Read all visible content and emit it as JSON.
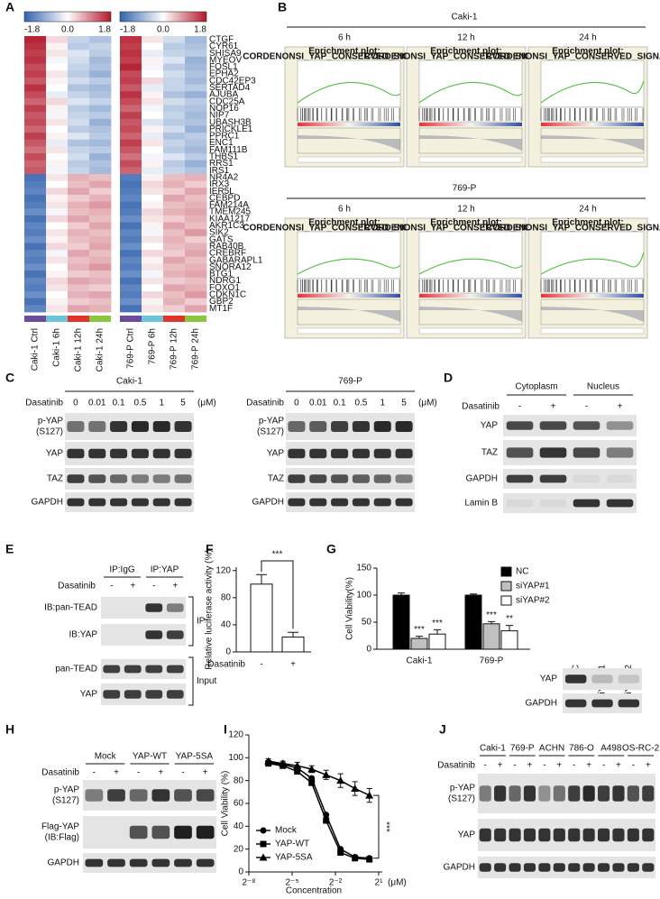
{
  "heatmap": {
    "label": "A",
    "scale_ticks": [
      -1.8,
      {
        "value": 0,
        "label": "0.0"
      },
      1.8
    ],
    "columns": [
      "Caki-1 Ctrl",
      "Caki-1 6h",
      "Caki-1 12h",
      "Caki-1 24h",
      "769-P Ctrl",
      "769-P 6h",
      "769-P 12h",
      "769-P 24h"
    ],
    "group_colors": [
      "#6a4c9c",
      "#6cc5d8",
      "#e0342c",
      "#8cc63f"
    ],
    "genes": [
      "CTGF",
      "CYR61",
      "SHISA9",
      "MYEOV",
      "FOSL1",
      "EPHA2",
      "CDC42EP3",
      "SERTAD4",
      "AJUBA",
      "CDC25A",
      "NOP16",
      "NIP7",
      "UBASH3B",
      "PRICKLE1",
      "PPRC1",
      "ENC1",
      "FAM111B",
      "THBS1",
      "RRS1",
      "IRS1",
      "NR4A2",
      "IRX3",
      "IER5L",
      "CEBPD",
      "FAM214A",
      "TMEM245",
      "KIAA1217",
      "AKR1C3",
      "SIK2",
      "GATS",
      "RAB40B",
      "CREBRF",
      "GABARAPL1",
      "SNORA12",
      "BTG1",
      "NDRG1",
      "FOXO1",
      "CDKN1C",
      "GBP2",
      "MT1F"
    ],
    "values": [
      [
        1.7,
        0.3,
        -0.5,
        -0.7,
        1.6,
        0.2,
        -0.4,
        -0.8
      ],
      [
        1.6,
        0.1,
        -0.6,
        -0.5,
        1.5,
        0.0,
        -0.6,
        -0.7
      ],
      [
        1.5,
        0.2,
        -0.3,
        -0.6,
        1.6,
        -0.2,
        -0.5,
        -0.6
      ],
      [
        1.6,
        -0.1,
        -0.4,
        -0.8,
        1.5,
        0.1,
        -0.3,
        -0.9
      ],
      [
        1.4,
        0.0,
        -0.5,
        -0.7,
        1.7,
        -0.1,
        -0.6,
        -0.8
      ],
      [
        1.5,
        0.2,
        -0.6,
        -0.9,
        1.4,
        0.0,
        -0.4,
        -0.7
      ],
      [
        1.3,
        0.1,
        -0.4,
        -0.6,
        1.5,
        0.3,
        -0.5,
        -0.8
      ],
      [
        1.6,
        0.0,
        -0.7,
        -0.8,
        1.3,
        -0.2,
        -0.5,
        -0.6
      ],
      [
        1.4,
        -0.2,
        -0.5,
        -0.7,
        1.6,
        0.1,
        -0.7,
        -0.9
      ],
      [
        1.2,
        0.3,
        -0.3,
        -0.5,
        1.4,
        0.2,
        -0.4,
        -0.6
      ],
      [
        1.5,
        0.1,
        -0.6,
        -0.8,
        1.2,
        -0.1,
        -0.6,
        -0.7
      ],
      [
        1.3,
        -0.1,
        -0.5,
        -0.6,
        1.5,
        0.0,
        -0.5,
        -0.8
      ],
      [
        1.4,
        0.2,
        -0.4,
        -0.9,
        1.3,
        -0.3,
        -0.6,
        -0.7
      ],
      [
        1.2,
        0.0,
        -0.6,
        -0.7,
        1.4,
        0.1,
        -0.4,
        -0.9
      ],
      [
        1.5,
        0.1,
        -0.3,
        -0.6,
        1.2,
        -0.2,
        -0.7,
        -0.6
      ],
      [
        1.3,
        -0.2,
        -0.7,
        -0.8,
        1.5,
        0.2,
        -0.5,
        -0.7
      ],
      [
        1.1,
        0.2,
        -0.5,
        -0.6,
        1.3,
        0.0,
        -0.6,
        -0.8
      ],
      [
        1.4,
        0.0,
        -0.4,
        -0.9,
        1.1,
        -0.1,
        -0.3,
        -0.6
      ],
      [
        1.2,
        0.1,
        -0.6,
        -0.7,
        1.4,
        0.1,
        -0.6,
        -0.9
      ],
      [
        1.3,
        -0.1,
        -0.5,
        -0.8,
        1.2,
        -0.2,
        -0.5,
        -0.7
      ],
      [
        -1.6,
        0.2,
        0.6,
        0.5,
        -1.5,
        0.1,
        0.5,
        0.6
      ],
      [
        -1.5,
        0.0,
        0.5,
        0.7,
        -1.6,
        0.3,
        0.6,
        0.4
      ],
      [
        -1.4,
        0.3,
        0.7,
        0.4,
        -1.5,
        0.2,
        0.4,
        0.7
      ],
      [
        -1.6,
        0.1,
        0.4,
        0.6,
        -1.4,
        0.0,
        0.7,
        0.5
      ],
      [
        -1.5,
        0.2,
        0.6,
        0.8,
        -1.6,
        0.1,
        0.5,
        0.6
      ],
      [
        -1.3,
        -0.1,
        0.5,
        0.6,
        -1.5,
        0.3,
        0.6,
        0.7
      ],
      [
        -1.6,
        0.3,
        0.7,
        0.5,
        -1.3,
        0.2,
        0.4,
        0.6
      ],
      [
        -1.4,
        0.0,
        0.4,
        0.7,
        -1.6,
        0.1,
        0.7,
        0.5
      ],
      [
        -1.5,
        0.2,
        0.6,
        0.5,
        -1.4,
        -0.1,
        0.5,
        0.8
      ],
      [
        -1.3,
        0.1,
        0.5,
        0.6,
        -1.5,
        0.2,
        0.6,
        0.4
      ],
      [
        -1.6,
        0.3,
        0.4,
        0.7,
        -1.3,
        0.0,
        0.5,
        0.6
      ],
      [
        -1.4,
        -0.1,
        0.7,
        0.5,
        -1.6,
        0.3,
        0.4,
        0.7
      ],
      [
        -1.5,
        0.2,
        0.5,
        0.6,
        -1.4,
        0.1,
        0.7,
        0.5
      ],
      [
        -1.3,
        0.0,
        0.6,
        0.8,
        -1.5,
        0.2,
        0.5,
        0.6
      ],
      [
        -1.6,
        0.1,
        0.4,
        0.5,
        -1.3,
        -0.1,
        0.6,
        0.7
      ],
      [
        -1.4,
        0.3,
        0.7,
        0.6,
        -1.6,
        0.2,
        0.4,
        0.5
      ],
      [
        -1.5,
        0.2,
        0.5,
        0.4,
        -1.4,
        0.0,
        0.7,
        0.6
      ],
      [
        -1.3,
        0.0,
        0.6,
        0.7,
        -1.5,
        0.3,
        0.5,
        0.8
      ],
      [
        -1.6,
        0.1,
        0.4,
        0.5,
        -1.3,
        0.1,
        0.6,
        0.4
      ],
      [
        -1.4,
        0.2,
        0.7,
        0.6,
        -1.6,
        0.2,
        0.4,
        0.7
      ]
    ]
  },
  "gsea": {
    "label": "B",
    "groups": [
      "Caki-1",
      "769-P"
    ],
    "times": [
      "6 h",
      "12 h",
      "24 h"
    ],
    "plot_title": "Enrichment plot:",
    "gene_set": "CORDENONSI_YAP_CONSERVED_SIGNATURE"
  },
  "blot_C": {
    "label": "C",
    "cells": [
      "Caki-1",
      "769-P"
    ],
    "treatment": "Dasatinib",
    "doses": [
      "0",
      "0.01",
      "0.1",
      "0.5",
      "1",
      "5"
    ],
    "unit": "(μM)",
    "rows": [
      [
        "p-YAP",
        "(S127)"
      ],
      [
        "YAP"
      ],
      [
        "TAZ"
      ],
      [
        "GAPDH"
      ]
    ]
  },
  "blot_D": {
    "label": "D",
    "fractions": [
      "Cytoplasm",
      "Nucleus"
    ],
    "treatment": "Dasatinib",
    "signs": [
      "-",
      "+"
    ],
    "rows": [
      [
        "YAP"
      ],
      [
        "TAZ"
      ],
      [
        "GAPDH"
      ],
      [
        "Lamin B"
      ]
    ]
  },
  "blot_E": {
    "label": "E",
    "ips": [
      "IP:IgG",
      "IP:YAP"
    ],
    "treatment": "Dasatinib",
    "signs": [
      "-",
      "+"
    ],
    "rows": [
      [
        "IB:pan-TEAD"
      ],
      [
        "IB:YAP"
      ],
      [
        "pan-TEAD"
      ],
      [
        "YAP"
      ]
    ],
    "brackets": [
      "IP",
      "Input"
    ]
  },
  "blot_G": {
    "lanes": [
      "NC",
      "siYAP#1",
      "siYAP#2"
    ],
    "rows": [
      [
        "YAP"
      ],
      [
        "GAPDH"
      ]
    ]
  },
  "blot_H": {
    "label": "H",
    "groups": [
      "Mock",
      "YAP-WT",
      "YAP-5SA"
    ],
    "treatment": "Dasatinib",
    "signs": [
      "-",
      "+"
    ],
    "rows": [
      [
        "p-YAP",
        "(S127)"
      ],
      [
        "Flag-YAP",
        "(IB:Flag)"
      ],
      [
        "GAPDH"
      ]
    ]
  },
  "blot_J": {
    "label": "J",
    "cells": [
      "Caki-1",
      "769-P",
      "ACHN",
      "786-O",
      "A498",
      "OS-RC-2"
    ],
    "treatment": "Dasatinib",
    "signs": [
      "-",
      "+"
    ],
    "rows": [
      [
        "p-YAP",
        "(S127)"
      ],
      [
        "YAP"
      ],
      [
        "GAPDH"
      ]
    ]
  },
  "chart_data": [
    {
      "type": "bar",
      "label": "F",
      "ylabel": "Relative luciferase activity (%)",
      "xlabel": "Dasatinib",
      "categories": [
        "-",
        "+"
      ],
      "values": [
        100,
        22
      ],
      "errors": [
        14,
        7
      ],
      "color": "#ffffff",
      "ylim": [
        0,
        125
      ],
      "yticks": [
        0,
        40,
        80,
        120
      ],
      "annotation": "***"
    },
    {
      "type": "grouped_bar",
      "label": "G",
      "ylabel": "Cell Viability(%)",
      "categories": [
        "Caki-1",
        "769-P"
      ],
      "series": [
        {
          "name": "NC",
          "color": "#000000",
          "values": [
            100,
            100
          ],
          "errors": [
            4,
            2
          ]
        },
        {
          "name": "siYAP#1",
          "color": "#c0c0c0",
          "values": [
            20,
            47
          ],
          "errors": [
            4,
            4
          ],
          "annotations": [
            "***",
            "***"
          ]
        },
        {
          "name": "siYAP#2",
          "color": "#ffffff",
          "values": [
            28,
            34
          ],
          "errors": [
            8,
            10
          ],
          "annotations": [
            "***",
            "**"
          ]
        }
      ],
      "ylim": [
        0,
        150
      ],
      "yticks": [
        0,
        50,
        100,
        150
      ],
      "legend": "upper right"
    },
    {
      "type": "line",
      "label": "I",
      "ylabel": "Cell Viability (%)",
      "xlabel": "Concentration",
      "xunit": "(μM)",
      "xscale": "log2",
      "x": [
        0.01,
        0.02,
        0.04,
        0.08,
        0.16,
        0.32,
        0.64,
        1.28
      ],
      "series": [
        {
          "name": "Mock",
          "marker": "circle",
          "color": "#000000",
          "values": [
            96,
            94,
            91,
            82,
            50,
            20,
            13,
            12
          ]
        },
        {
          "name": "YAP-WT",
          "marker": "square",
          "color": "#000000",
          "values": [
            95,
            93,
            88,
            78,
            45,
            17,
            12,
            11
          ]
        },
        {
          "name": "YAP-5SA",
          "marker": "triangle",
          "color": "#000000",
          "values": [
            97,
            95,
            93,
            90,
            85,
            80,
            73,
            67
          ],
          "errors": [
            2,
            2,
            3,
            3,
            4,
            6,
            6,
            6
          ]
        }
      ],
      "xlim": [
        0.00390625,
        2
      ],
      "xticks": [
        {
          "value": 0.00390625,
          "label": "2⁻⁸"
        },
        {
          "value": 0.03125,
          "label": "2⁻⁵"
        },
        {
          "value": 0.25,
          "label": "2⁻²"
        },
        {
          "value": 2,
          "label": "2¹"
        }
      ],
      "ylim": [
        0,
        120
      ],
      "yticks": [
        0,
        20,
        40,
        60,
        80,
        100,
        120
      ],
      "legend": "lower left",
      "annotation": "***"
    }
  ]
}
